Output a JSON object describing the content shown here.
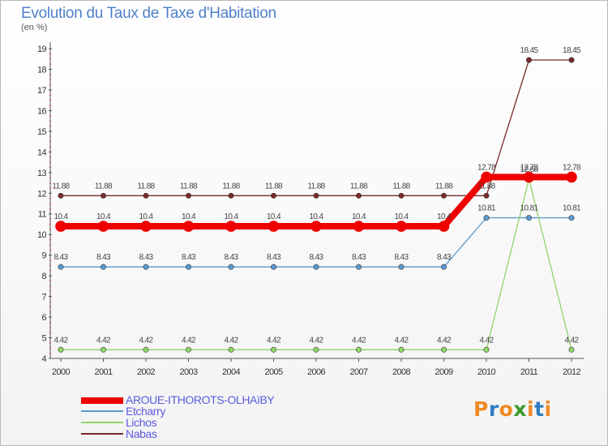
{
  "title": "Evolution du Taux de Taxe d'Habitation",
  "subtitle": "(en %)",
  "logo": {
    "letters": [
      "P",
      "r",
      "o",
      "x",
      "i",
      "t",
      "i"
    ],
    "colors": [
      "#f08a24",
      "#2f7dc1",
      "#f08a24",
      "#3a9a2c",
      "#f08a24",
      "#2f7dc1",
      "#f08a24"
    ]
  },
  "chart_data": {
    "type": "line",
    "title": "Evolution du Taux de Taxe d'Habitation",
    "ylabel": "(en %)",
    "xlabel": "",
    "x": [
      "2000",
      "2001",
      "2002",
      "2003",
      "2004",
      "2005",
      "2006",
      "2007",
      "2008",
      "2009",
      "2010",
      "2011",
      "2012"
    ],
    "ylim": [
      4,
      19
    ],
    "yticks": [
      4,
      5,
      6,
      7,
      8,
      9,
      10,
      11,
      12,
      13,
      14,
      15,
      16,
      17,
      18,
      19
    ],
    "grid": false,
    "legend_position": "bottom-left",
    "series": [
      {
        "name": "Nabas",
        "color": "#7a2a2a",
        "width": 1.3,
        "marker": 3.2,
        "values": [
          11.88,
          11.88,
          11.88,
          11.88,
          11.88,
          11.88,
          11.88,
          11.88,
          11.88,
          11.88,
          11.88,
          18.45,
          18.45
        ],
        "labels": [
          "11.88",
          "11.88",
          "11.88",
          "11.88",
          "11.88",
          "11.88",
          "11.88",
          "11.88",
          "11.88",
          "11.88",
          "11.88",
          "18.45",
          "18.45"
        ]
      },
      {
        "name": "Etcharry",
        "color": "#5a9ad0",
        "width": 1.3,
        "marker": 3.2,
        "values": [
          8.43,
          8.43,
          8.43,
          8.43,
          8.43,
          8.43,
          8.43,
          8.43,
          8.43,
          8.43,
          10.81,
          10.81,
          10.81
        ],
        "labels": [
          "8.43",
          "8.43",
          "8.43",
          "8.43",
          "8.43",
          "8.43",
          "8.43",
          "8.43",
          "8.43",
          "8.43",
          "10.81",
          "10.81",
          "10.81"
        ]
      },
      {
        "name": "Lichos",
        "color": "#8fd66a",
        "width": 1.3,
        "marker": 3.2,
        "values": [
          4.42,
          4.42,
          4.42,
          4.42,
          4.42,
          4.42,
          4.42,
          4.42,
          4.42,
          4.42,
          4.42,
          12.68,
          4.42
        ],
        "labels": [
          "4.42",
          "4.42",
          "4.42",
          "4.42",
          "4.42",
          "4.42",
          "4.42",
          "4.42",
          "4.42",
          "4.42",
          "4.42",
          "12.68",
          "4.42"
        ]
      },
      {
        "name": "AROUE-ITHOROTS-OLHAïBY",
        "color": "#ee0000",
        "width": 8,
        "marker": 6.5,
        "values": [
          10.4,
          10.4,
          10.4,
          10.4,
          10.4,
          10.4,
          10.4,
          10.4,
          10.4,
          10.4,
          12.78,
          12.78,
          12.78
        ],
        "labels": [
          "10.4",
          "10.4",
          "10.4",
          "10.4",
          "10.4",
          "10.4",
          "10.4",
          "10.4",
          "10.4",
          "10.4",
          "12.78",
          "12.78",
          "12.78"
        ]
      }
    ],
    "legend_order": [
      "AROUE-ITHOROTS-OLHAïBY",
      "Etcharry",
      "Lichos",
      "Nabas"
    ]
  },
  "legend": [
    {
      "name": "AROUE-ITHOROTS-OLHAïBY",
      "color": "#ee0000"
    },
    {
      "name": "Etcharry",
      "color": "#5a9ad0"
    },
    {
      "name": "Lichos",
      "color": "#8fd66a"
    },
    {
      "name": "Nabas",
      "color": "#7a2a2a"
    }
  ]
}
